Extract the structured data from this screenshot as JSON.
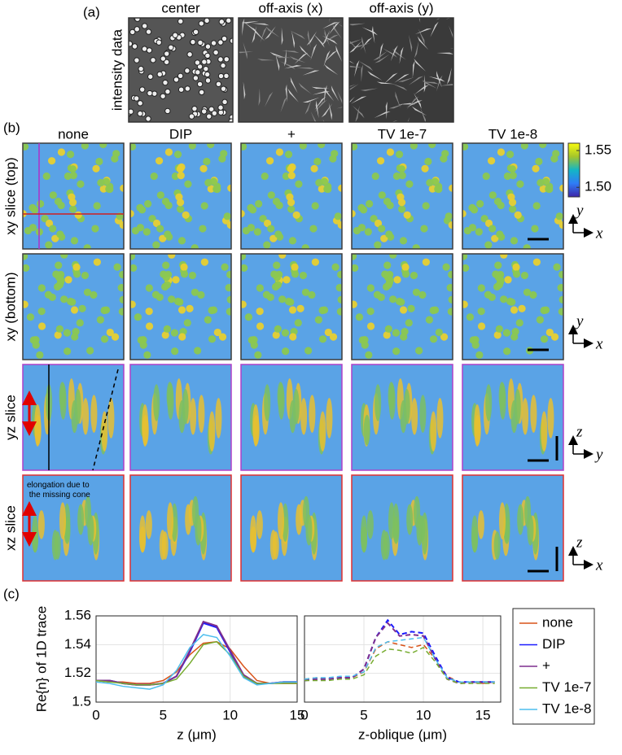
{
  "panel_a": {
    "label": "(a)",
    "ylabel": "intensity data",
    "columns": [
      "center",
      "off-axis (x)",
      "off-axis (y)"
    ]
  },
  "panel_b": {
    "label": "(b)",
    "columns": [
      "none",
      "DIP",
      "+",
      "TV 1e-7",
      "TV 1e-8"
    ],
    "rows": [
      "xy slice (top)",
      "xy (bottom)",
      "yz slice",
      "xz slice"
    ],
    "row_colors": [
      "#000000",
      "#000000",
      "#b030c8",
      "#e02020"
    ],
    "frame_colors": [
      "#3c3c3c",
      "#3c3c3c",
      "#b040c8",
      "#e03030"
    ],
    "axes": [
      [
        "y",
        "x"
      ],
      [
        "y",
        "x"
      ],
      [
        "z",
        "y"
      ],
      [
        "z",
        "x"
      ]
    ],
    "annotation": "elongation due to the missing cone",
    "colorbar": {
      "lim": [
        1.487,
        1.56
      ],
      "ticks": [
        1.55,
        {
          "value": 1.5,
          "label": "1.50"
        }
      ]
    }
  },
  "panel_c": {
    "label": "(c)"
  },
  "chart_data": [
    {
      "type": "line",
      "xlabel": "z (μm)",
      "ylabel": "Re{n} of 1D trace",
      "xlim": [
        0,
        15
      ],
      "ylim": [
        1.5,
        1.56
      ],
      "xticks": [
        0,
        5,
        10,
        15
      ],
      "yticks": [
        1.5,
        1.52,
        1.54,
        1.56
      ],
      "grid": true,
      "x": [
        0,
        1,
        2,
        3,
        4,
        5,
        6,
        7,
        8,
        9,
        10,
        11,
        12,
        13,
        14,
        15
      ],
      "series": [
        {
          "color": "#d95319",
          "values": [
            1.515,
            1.514,
            1.514,
            1.513,
            1.513,
            1.515,
            1.521,
            1.533,
            1.541,
            1.542,
            1.537,
            1.525,
            1.515,
            1.513,
            1.513,
            1.513
          ]
        },
        {
          "color": "#1a1aff",
          "values": [
            1.515,
            1.515,
            1.513,
            1.512,
            1.512,
            1.513,
            1.518,
            1.535,
            1.555,
            1.552,
            1.535,
            1.518,
            1.513,
            1.513,
            1.514,
            1.514
          ]
        },
        {
          "color": "#7e2f8e",
          "values": [
            1.515,
            1.515,
            1.513,
            1.512,
            1.512,
            1.513,
            1.518,
            1.536,
            1.556,
            1.553,
            1.536,
            1.519,
            1.513,
            1.513,
            1.514,
            1.514
          ]
        },
        {
          "color": "#77ac30",
          "values": [
            1.515,
            1.514,
            1.513,
            1.512,
            1.512,
            1.513,
            1.516,
            1.527,
            1.54,
            1.542,
            1.533,
            1.518,
            1.513,
            1.513,
            1.513,
            1.513
          ]
        },
        {
          "color": "#4dbeee",
          "values": [
            1.514,
            1.513,
            1.511,
            1.51,
            1.509,
            1.512,
            1.522,
            1.538,
            1.547,
            1.545,
            1.532,
            1.517,
            1.512,
            1.513,
            1.514,
            1.514
          ]
        }
      ]
    },
    {
      "type": "line",
      "xlabel": "z-oblique (μm)",
      "linestyle": "dashed",
      "legend": "outside right",
      "ytick_labels": false,
      "xlim": [
        0,
        16.5
      ],
      "ylim": [
        1.5,
        1.56
      ],
      "xticks": [
        0,
        5,
        10,
        15
      ],
      "yticks": [
        1.5,
        1.52,
        1.54,
        1.56
      ],
      "grid": true,
      "x": [
        0,
        1,
        2,
        3,
        4,
        5,
        6,
        7,
        8,
        9,
        10,
        11,
        12,
        13,
        14,
        15,
        16
      ],
      "series": [
        {
          "name": "none",
          "color": "#d95319",
          "values": [
            1.516,
            1.517,
            1.516,
            1.517,
            1.517,
            1.521,
            1.537,
            1.542,
            1.54,
            1.538,
            1.54,
            1.53,
            1.518,
            1.514,
            1.514,
            1.513,
            1.514
          ]
        },
        {
          "name": "DIP",
          "color": "#1a1aff",
          "values": [
            1.515,
            1.516,
            1.516,
            1.517,
            1.517,
            1.523,
            1.545,
            1.557,
            1.547,
            1.549,
            1.548,
            1.532,
            1.517,
            1.514,
            1.514,
            1.514,
            1.514
          ]
        },
        {
          "name": "+",
          "color": "#7e2f8e",
          "values": [
            1.515,
            1.516,
            1.516,
            1.517,
            1.517,
            1.523,
            1.545,
            1.555,
            1.546,
            1.547,
            1.546,
            1.53,
            1.516,
            1.513,
            1.514,
            1.514,
            1.514
          ]
        },
        {
          "name": "TV 1e-7",
          "color": "#77ac30",
          "values": [
            1.515,
            1.515,
            1.515,
            1.516,
            1.516,
            1.519,
            1.532,
            1.537,
            1.536,
            1.534,
            1.538,
            1.528,
            1.516,
            1.513,
            1.513,
            1.513,
            1.513
          ]
        },
        {
          "name": "TV 1e-8",
          "color": "#4dbeee",
          "values": [
            1.516,
            1.517,
            1.517,
            1.518,
            1.518,
            1.521,
            1.538,
            1.542,
            1.543,
            1.544,
            1.545,
            1.53,
            1.517,
            1.514,
            1.514,
            1.514,
            1.514
          ]
        }
      ]
    }
  ]
}
